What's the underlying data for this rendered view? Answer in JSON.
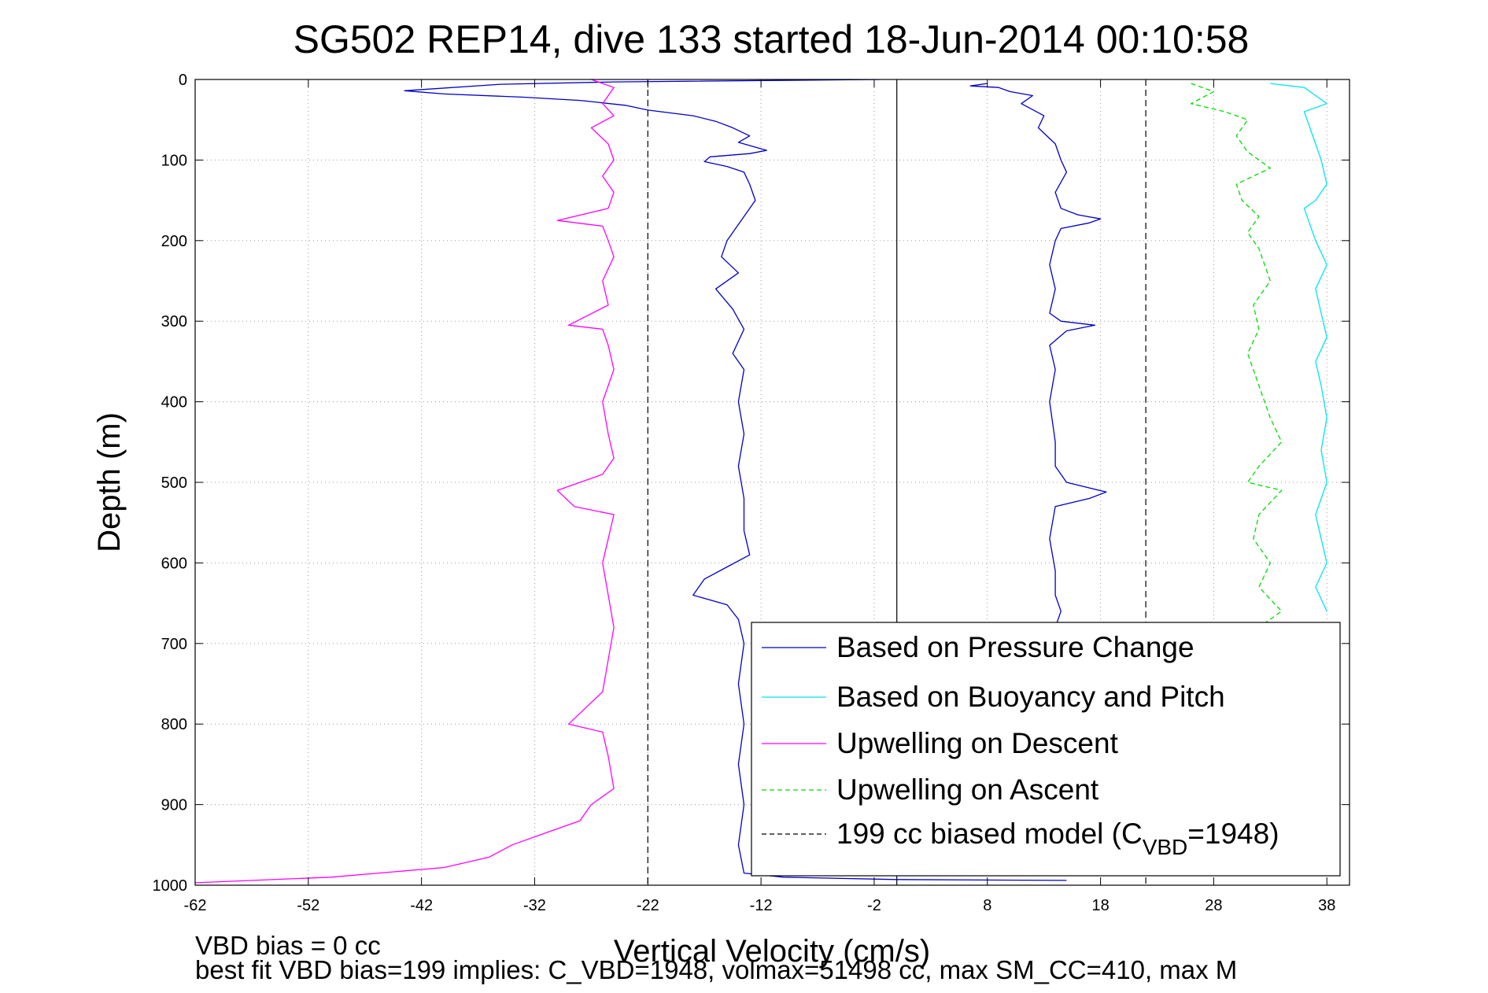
{
  "chart_data": {
    "type": "line",
    "title": "SG502 REP14, dive 133 started 18-Jun-2014 00:10:58",
    "xlabel": "Vertical Velocity (cm/s)",
    "ylabel": "Depth (m)",
    "xlim": [
      -62,
      40
    ],
    "ylim": [
      1000,
      0
    ],
    "y_reversed": true,
    "grid": true,
    "legend_position": "bottom-right",
    "x_ticks": [
      "-62",
      "-52",
      "-42",
      "-32",
      "-22",
      "-12",
      "-2",
      "8",
      "18",
      "28",
      "38"
    ],
    "y_ticks": [
      "0",
      "100",
      "200",
      "300",
      "400",
      "500",
      "600",
      "700",
      "800",
      "900",
      "1000"
    ],
    "reference_lines": [
      {
        "x": -22,
        "style": "dashed",
        "color": "#000000"
      },
      {
        "x": 0,
        "style": "solid",
        "color": "#000000"
      },
      {
        "x": 22,
        "style": "dashed",
        "color": "#000000"
      }
    ],
    "legend": [
      {
        "label": "Based on Pressure Change",
        "color": "#0000c8",
        "style": "solid"
      },
      {
        "label": "Based on Buoyancy and Pitch",
        "color": "#00e5ee",
        "style": "solid"
      },
      {
        "label": "Upwelling on Descent",
        "color": "#ff00ff",
        "style": "solid"
      },
      {
        "label": "Upwelling on Ascent",
        "color": "#00dd00",
        "style": "dashed"
      },
      {
        "label_main": "199 cc biased model (C",
        "label_sub": "VBD",
        "label_end": "=1948)",
        "color": "#000000",
        "style": "dashed"
      }
    ],
    "series": [
      {
        "color": "#0000c8",
        "style": "solid",
        "points": [
          [
            -1.5,
            0
          ],
          [
            -25,
            3
          ],
          [
            -35,
            6
          ],
          [
            -43.5,
            14
          ],
          [
            -40,
            18
          ],
          [
            -33,
            22
          ],
          [
            -28,
            26
          ],
          [
            -24,
            32
          ],
          [
            -22,
            38
          ],
          [
            -18,
            45
          ],
          [
            -16,
            52
          ],
          [
            -14.5,
            60
          ],
          [
            -13,
            70
          ],
          [
            -14,
            78
          ],
          [
            -11.5,
            88
          ],
          [
            -13,
            92
          ],
          [
            -16.5,
            96
          ],
          [
            -17,
            102
          ],
          [
            -15,
            108
          ],
          [
            -13.5,
            115
          ],
          [
            -13,
            130
          ],
          [
            -12.5,
            150
          ],
          [
            -14,
            180
          ],
          [
            -15,
            200
          ],
          [
            -15.5,
            220
          ],
          [
            -14,
            240
          ],
          [
            -16,
            260
          ],
          [
            -14.5,
            285
          ],
          [
            -13.5,
            310
          ],
          [
            -14.5,
            340
          ],
          [
            -13.5,
            360
          ],
          [
            -14,
            400
          ],
          [
            -13.5,
            440
          ],
          [
            -14,
            480
          ],
          [
            -13.5,
            520
          ],
          [
            -13.5,
            560
          ],
          [
            -13,
            590
          ],
          [
            -15,
            605
          ],
          [
            -17,
            620
          ],
          [
            -18,
            640
          ],
          [
            -15,
            652
          ],
          [
            -14,
            670
          ],
          [
            -13.5,
            700
          ],
          [
            -14,
            750
          ],
          [
            -13.5,
            800
          ],
          [
            -14,
            850
          ],
          [
            -13.5,
            900
          ],
          [
            -14,
            950
          ],
          [
            -13.5,
            985
          ],
          [
            -10,
            990
          ],
          [
            0,
            993
          ],
          [
            15,
            994
          ]
        ]
      },
      {
        "color": "#0000c8",
        "style": "solid",
        "points": [
          [
            8,
            5
          ],
          [
            6.5,
            8
          ],
          [
            9,
            10
          ],
          [
            10,
            15
          ],
          [
            12,
            20
          ],
          [
            11,
            30
          ],
          [
            13,
            45
          ],
          [
            12.5,
            60
          ],
          [
            14,
            80
          ],
          [
            14.5,
            100
          ],
          [
            15,
            115
          ],
          [
            14,
            140
          ],
          [
            14.5,
            160
          ],
          [
            16,
            168
          ],
          [
            18,
            173
          ],
          [
            17,
            178
          ],
          [
            14.5,
            185
          ],
          [
            14,
            200
          ],
          [
            13.5,
            230
          ],
          [
            14,
            260
          ],
          [
            13.5,
            290
          ],
          [
            14.5,
            300
          ],
          [
            17.5,
            305
          ],
          [
            15,
            312
          ],
          [
            13.5,
            330
          ],
          [
            14,
            360
          ],
          [
            13.5,
            400
          ],
          [
            14,
            450
          ],
          [
            14,
            480
          ],
          [
            15,
            500
          ],
          [
            18.5,
            512
          ],
          [
            17,
            520
          ],
          [
            14,
            530
          ],
          [
            13.5,
            570
          ],
          [
            14,
            610
          ],
          [
            14,
            640
          ],
          [
            14.5,
            660
          ],
          [
            14,
            680
          ]
        ]
      },
      {
        "color": "#00e5ee",
        "style": "solid",
        "points": [
          [
            33,
            5
          ],
          [
            36,
            10
          ],
          [
            37,
            20
          ],
          [
            38,
            30
          ],
          [
            36,
            40
          ],
          [
            36.5,
            60
          ],
          [
            37,
            80
          ],
          [
            37.5,
            100
          ],
          [
            38,
            130
          ],
          [
            37,
            150
          ],
          [
            36,
            160
          ],
          [
            36.5,
            180
          ],
          [
            37,
            200
          ],
          [
            38,
            230
          ],
          [
            37,
            260
          ],
          [
            37.5,
            290
          ],
          [
            38,
            320
          ],
          [
            37,
            350
          ],
          [
            37.5,
            380
          ],
          [
            38,
            420
          ],
          [
            37.5,
            460
          ],
          [
            38,
            500
          ],
          [
            37,
            540
          ],
          [
            37.5,
            570
          ],
          [
            38,
            600
          ],
          [
            37,
            630
          ],
          [
            38,
            660
          ]
        ]
      },
      {
        "color": "#ff00ff",
        "style": "solid",
        "points": [
          [
            -27,
            0
          ],
          [
            -25,
            10
          ],
          [
            -25.5,
            20
          ],
          [
            -26,
            30
          ],
          [
            -25,
            45
          ],
          [
            -27,
            60
          ],
          [
            -25.5,
            80
          ],
          [
            -25,
            100
          ],
          [
            -26,
            120
          ],
          [
            -25,
            140
          ],
          [
            -25.5,
            160
          ],
          [
            -30,
            175
          ],
          [
            -26,
            182
          ],
          [
            -25.5,
            200
          ],
          [
            -25,
            220
          ],
          [
            -26,
            250
          ],
          [
            -25.5,
            280
          ],
          [
            -29,
            305
          ],
          [
            -26,
            310
          ],
          [
            -25.5,
            330
          ],
          [
            -25,
            360
          ],
          [
            -26,
            400
          ],
          [
            -25.5,
            440
          ],
          [
            -25,
            470
          ],
          [
            -26,
            490
          ],
          [
            -30,
            510
          ],
          [
            -28.5,
            530
          ],
          [
            -25,
            540
          ],
          [
            -25.5,
            570
          ],
          [
            -26,
            600
          ],
          [
            -25.5,
            640
          ],
          [
            -25,
            680
          ],
          [
            -25.5,
            720
          ],
          [
            -26,
            760
          ],
          [
            -29,
            800
          ],
          [
            -26,
            810
          ],
          [
            -25.5,
            840
          ],
          [
            -25,
            880
          ],
          [
            -27,
            900
          ],
          [
            -28,
            920
          ],
          [
            -31,
            935
          ],
          [
            -34,
            950
          ],
          [
            -36,
            965
          ],
          [
            -40,
            978
          ],
          [
            -50,
            990
          ],
          [
            -62,
            997
          ]
        ]
      },
      {
        "color": "#00dd00",
        "style": "dashed",
        "points": [
          [
            26,
            5
          ],
          [
            28,
            15
          ],
          [
            26,
            30
          ],
          [
            29,
            40
          ],
          [
            31,
            50
          ],
          [
            30,
            70
          ],
          [
            31,
            90
          ],
          [
            33,
            110
          ],
          [
            30,
            130
          ],
          [
            30.5,
            150
          ],
          [
            32,
            170
          ],
          [
            31,
            190
          ],
          [
            32,
            210
          ],
          [
            33,
            250
          ],
          [
            31.5,
            280
          ],
          [
            32,
            310
          ],
          [
            31,
            340
          ],
          [
            32,
            380
          ],
          [
            33,
            420
          ],
          [
            34,
            450
          ],
          [
            32,
            480
          ],
          [
            31,
            500
          ],
          [
            34,
            510
          ],
          [
            32,
            540
          ],
          [
            31.5,
            570
          ],
          [
            33,
            600
          ],
          [
            32,
            630
          ],
          [
            34,
            660
          ],
          [
            32,
            680
          ]
        ]
      }
    ]
  },
  "notes": {
    "line1": "VBD bias = 0 cc",
    "line2": "best fit VBD bias=199 implies: C_VBD=1948, volmax=51498 cc, max SM_CC=410, max M"
  }
}
